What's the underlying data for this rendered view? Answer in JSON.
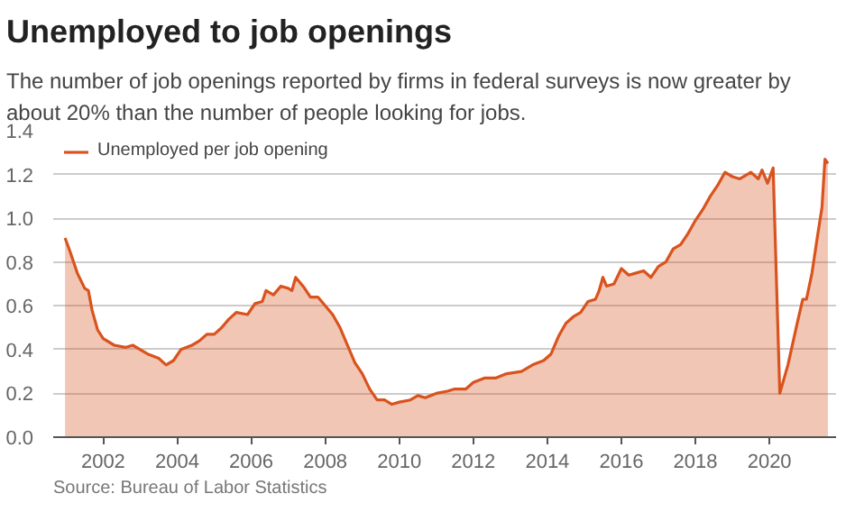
{
  "chart_data": {
    "type": "area",
    "title": "Unemployed to job openings",
    "subtitle": "The number of job openings reported by firms in federal surveys is now greater by about 20% than the number of people looking for jobs.",
    "annotations": [
      "Source: Bureau of Labor Statistics"
    ],
    "x": [
      2000.97,
      2001.1,
      2001.3,
      2001.5,
      2001.6,
      2001.7,
      2001.85,
      2002.0,
      2002.3,
      2002.6,
      2002.8,
      2003.0,
      2003.2,
      2003.5,
      2003.7,
      2003.9,
      2004.1,
      2004.4,
      2004.6,
      2004.8,
      2005.0,
      2005.2,
      2005.4,
      2005.6,
      2005.9,
      2006.1,
      2006.3,
      2006.4,
      2006.6,
      2006.8,
      2007.0,
      2007.1,
      2007.2,
      2007.4,
      2007.6,
      2007.8,
      2008.0,
      2008.2,
      2008.4,
      2008.6,
      2008.8,
      2009.0,
      2009.2,
      2009.4,
      2009.6,
      2009.8,
      2010.0,
      2010.3,
      2010.5,
      2010.7,
      2011.0,
      2011.3,
      2011.5,
      2011.8,
      2012.0,
      2012.3,
      2012.6,
      2012.9,
      2013.3,
      2013.6,
      2013.9,
      2014.1,
      2014.3,
      2014.5,
      2014.7,
      2014.9,
      2015.1,
      2015.3,
      2015.4,
      2015.5,
      2015.6,
      2015.8,
      2016.0,
      2016.2,
      2016.4,
      2016.6,
      2016.8,
      2017.0,
      2017.2,
      2017.4,
      2017.6,
      2017.8,
      2018.0,
      2018.2,
      2018.4,
      2018.6,
      2018.8,
      2019.0,
      2019.2,
      2019.5,
      2019.7,
      2019.8,
      2019.95,
      2020.1,
      2020.28,
      2020.5,
      2020.75,
      2020.9,
      2021.0,
      2021.15,
      2021.3,
      2021.42,
      2021.5,
      2021.58
    ],
    "series": [
      {
        "name": "Unemployed per job opening",
        "color": "#d9531e",
        "values": [
          0.91,
          0.85,
          0.75,
          0.68,
          0.67,
          0.58,
          0.49,
          0.45,
          0.42,
          0.41,
          0.42,
          0.4,
          0.38,
          0.36,
          0.33,
          0.35,
          0.4,
          0.42,
          0.44,
          0.47,
          0.47,
          0.5,
          0.54,
          0.57,
          0.56,
          0.61,
          0.62,
          0.67,
          0.65,
          0.69,
          0.68,
          0.67,
          0.73,
          0.69,
          0.64,
          0.64,
          0.6,
          0.56,
          0.5,
          0.42,
          0.34,
          0.29,
          0.22,
          0.17,
          0.17,
          0.15,
          0.16,
          0.17,
          0.19,
          0.18,
          0.2,
          0.21,
          0.22,
          0.22,
          0.25,
          0.27,
          0.27,
          0.29,
          0.3,
          0.33,
          0.35,
          0.38,
          0.46,
          0.52,
          0.55,
          0.57,
          0.62,
          0.63,
          0.67,
          0.73,
          0.69,
          0.7,
          0.77,
          0.74,
          0.75,
          0.76,
          0.73,
          0.78,
          0.8,
          0.86,
          0.88,
          0.93,
          0.99,
          1.04,
          1.1,
          1.15,
          1.21,
          1.19,
          1.18,
          1.21,
          1.18,
          1.22,
          1.16,
          1.23,
          0.2,
          0.33,
          0.52,
          0.63,
          0.63,
          0.75,
          0.92,
          1.05,
          1.27,
          1.25
        ]
      }
    ],
    "xlim": [
      2000.65,
      2021.8
    ],
    "xticks": [
      2002,
      2004,
      2006,
      2008,
      2010,
      2012,
      2014,
      2016,
      2018,
      2020
    ],
    "ylim": [
      0,
      1.4
    ],
    "yticks": [
      {
        "value": 0,
        "label": "0.0"
      },
      0.2,
      0.4,
      0.6,
      0.8,
      {
        "value": 1,
        "label": "1.0"
      },
      1.2,
      1.4
    ],
    "grid": "y",
    "legend": "top left"
  }
}
